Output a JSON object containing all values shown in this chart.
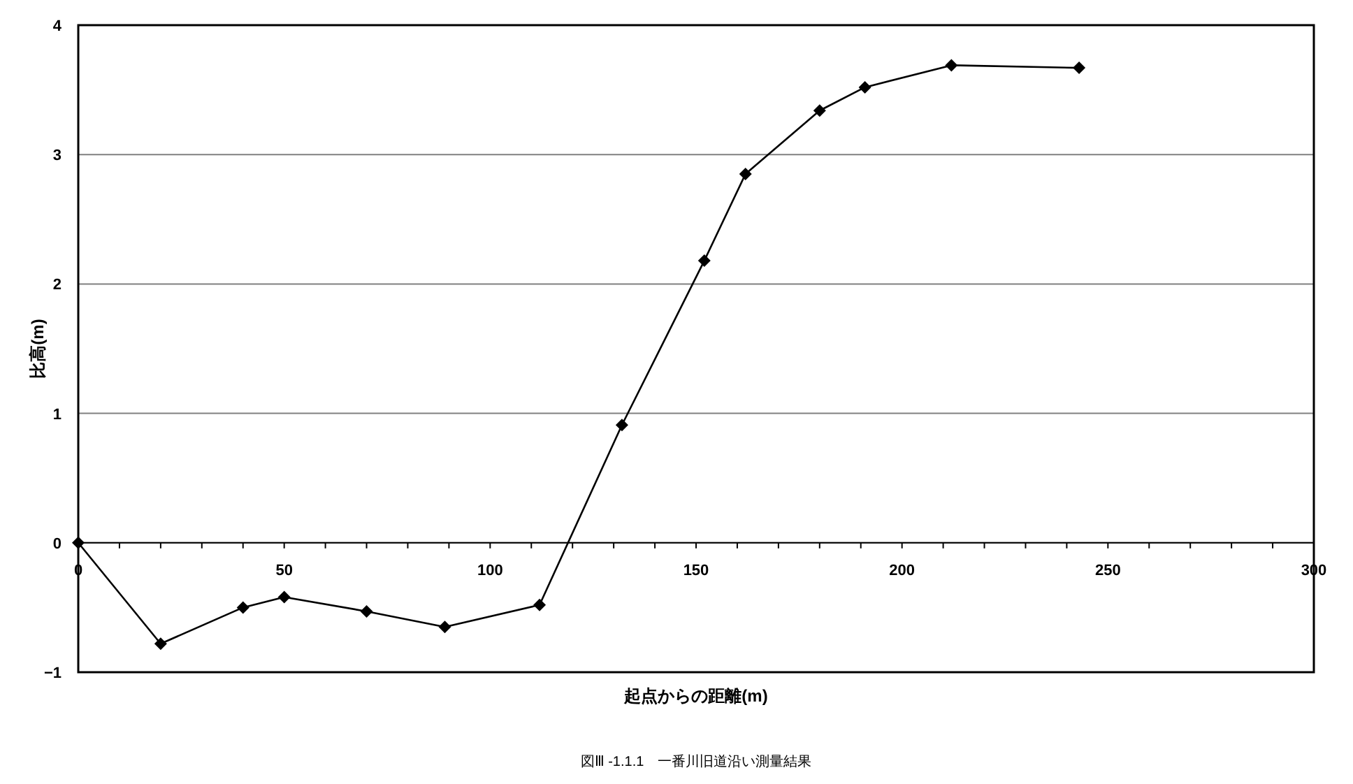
{
  "chart_data": {
    "type": "line",
    "xlabel": "起点からの距離(m)",
    "ylabel": "比高(m)",
    "annotations": [
      "図Ⅲ -1.1.1　一番川旧道沿い測量結果"
    ],
    "x": [
      0,
      20,
      40,
      50,
      70,
      89,
      112,
      132,
      152,
      162,
      180,
      191,
      212,
      243
    ],
    "series": [
      {
        "color": "#000000",
        "values": [
          0,
          -0.78,
          -0.5,
          -0.42,
          -0.53,
          -0.65,
          -0.48,
          0.91,
          2.18,
          2.85,
          3.34,
          3.52,
          3.69,
          3.67
        ]
      }
    ],
    "xlim": [
      0,
      300
    ],
    "ylim": [
      -1,
      4
    ],
    "xticks": [
      0,
      {
        "value": 10,
        "label": null
      },
      {
        "value": 20,
        "label": null
      },
      {
        "value": 30,
        "label": null
      },
      {
        "value": 40,
        "label": null
      },
      50,
      {
        "value": 60,
        "label": null
      },
      {
        "value": 70,
        "label": null
      },
      {
        "value": 80,
        "label": null
      },
      {
        "value": 90,
        "label": null
      },
      100,
      {
        "value": 110,
        "label": null
      },
      {
        "value": 120,
        "label": null
      },
      {
        "value": 130,
        "label": null
      },
      {
        "value": 140,
        "label": null
      },
      150,
      {
        "value": 160,
        "label": null
      },
      {
        "value": 170,
        "label": null
      },
      {
        "value": 180,
        "label": null
      },
      {
        "value": 190,
        "label": null
      },
      200,
      {
        "value": 210,
        "label": null
      },
      {
        "value": 220,
        "label": null
      },
      {
        "value": 230,
        "label": null
      },
      {
        "value": 240,
        "label": null
      },
      250,
      {
        "value": 260,
        "label": null
      },
      {
        "value": 270,
        "label": null
      },
      {
        "value": 280,
        "label": null
      },
      {
        "value": 290,
        "label": null
      },
      300
    ],
    "yticks": [
      -1,
      0,
      1,
      2,
      3,
      4
    ],
    "grid": "y",
    "marker": "diamond",
    "line_style": "solid"
  }
}
